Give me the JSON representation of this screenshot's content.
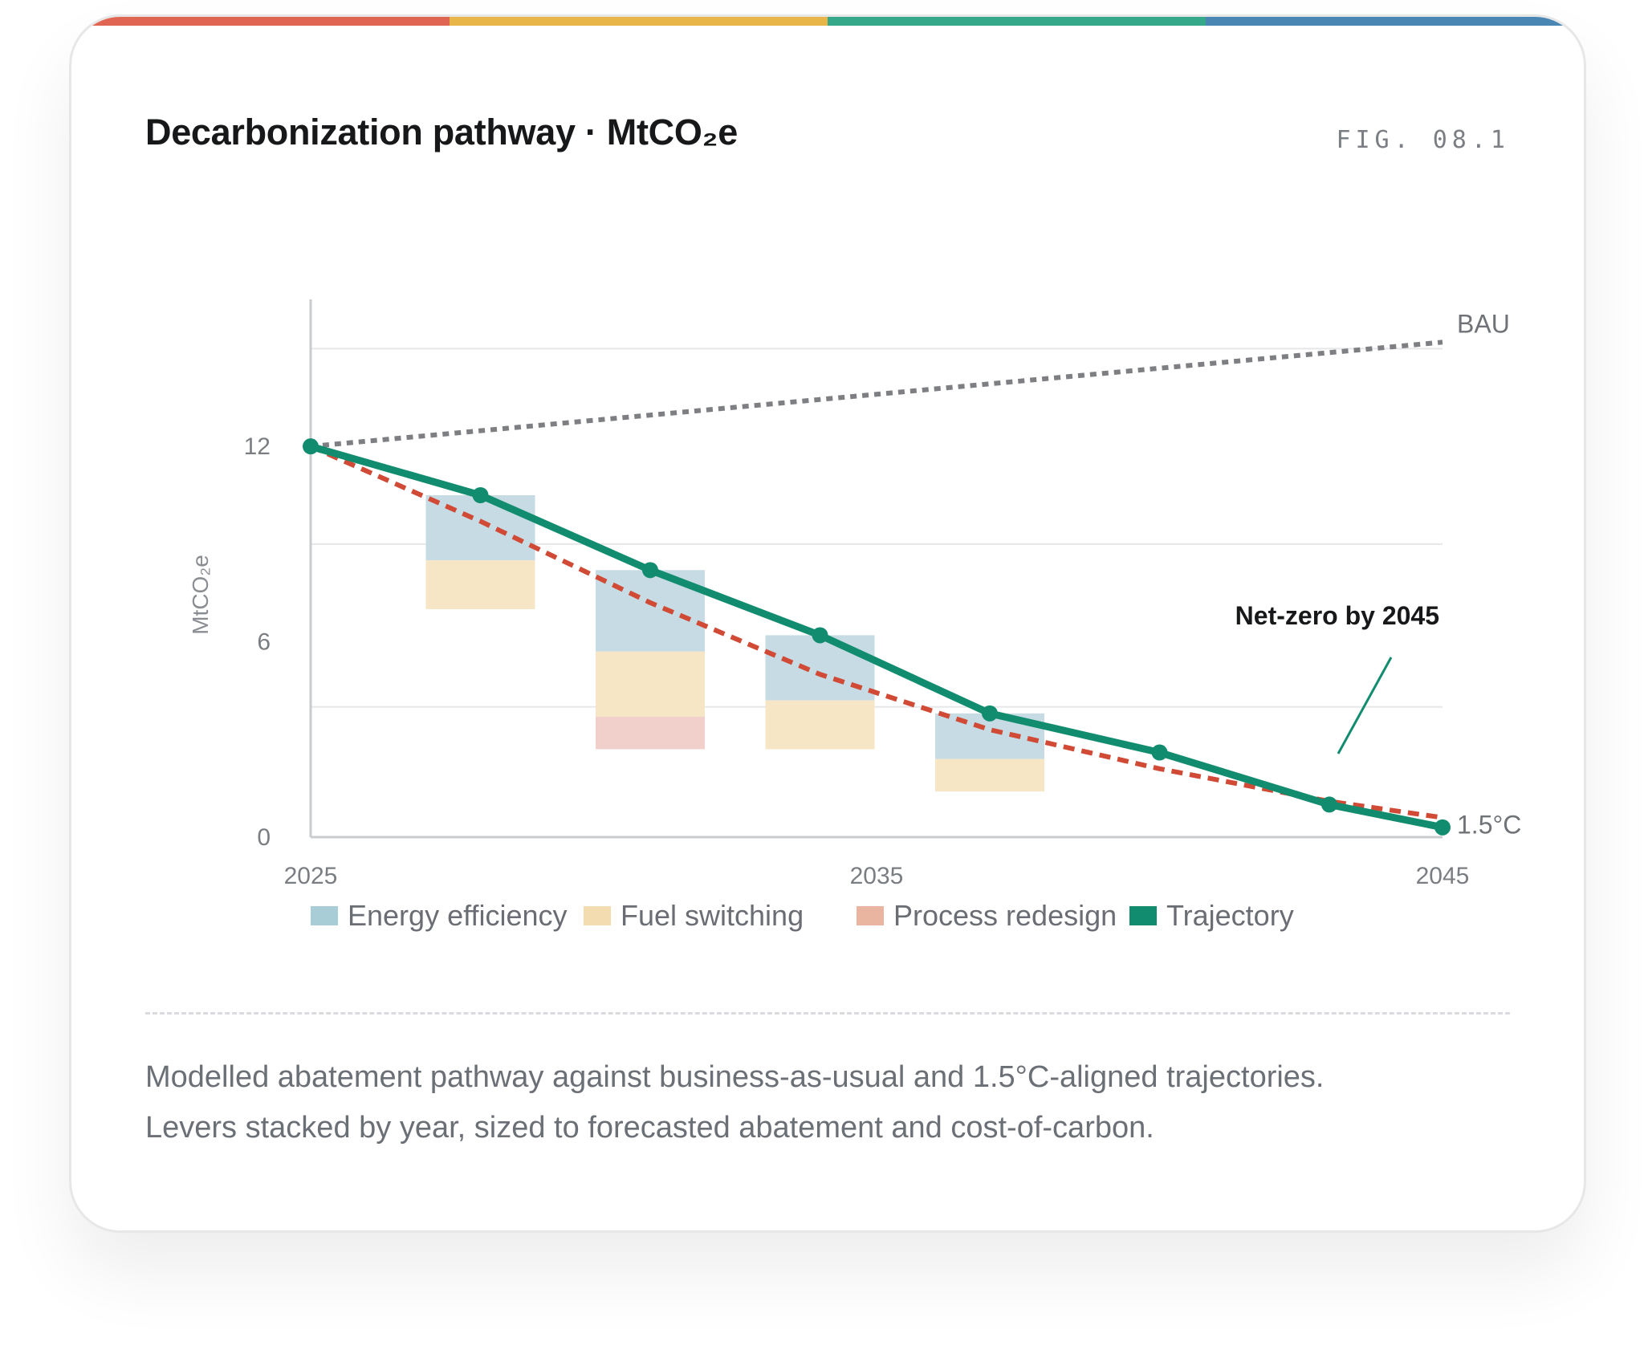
{
  "title": "Decarbonization pathway · MtCO₂e",
  "fig_label": "FIG. 08.1",
  "accent_colors": [
    "#e06552",
    "#e8b548",
    "#35a88a",
    "#4a86b4"
  ],
  "caption": {
    "line1": "Modelled abatement pathway against business-as-usual and 1.5°C-aligned trajectories.",
    "line2": "Levers stacked by year, sized to forecasted abatement and cost-of-carbon."
  },
  "chart_data": {
    "type": "line",
    "title": "Decarbonization pathway · MtCO₂e",
    "ylabel": "MtCO₂e",
    "xlabel": "",
    "xlim": [
      2025,
      2045
    ],
    "ylim": [
      0,
      17.5
    ],
    "x_ticks": [
      "2025",
      "2035",
      "2045"
    ],
    "y_ticks": [
      "0",
      "6",
      "12"
    ],
    "grid": true,
    "gridlines_y": [
      4,
      9,
      15
    ],
    "series": [
      {
        "name": "BAU",
        "style": "dotted",
        "color": "#7d7f83",
        "points": [
          [
            2025,
            12.0
          ],
          [
            2045,
            15.2
          ]
        ]
      },
      {
        "name": "1.5°C",
        "style": "dashed",
        "color": "#d04a36",
        "points": [
          [
            2025,
            12.0
          ],
          [
            2028,
            9.7
          ],
          [
            2031,
            7.2
          ],
          [
            2034,
            5.0
          ],
          [
            2037,
            3.3
          ],
          [
            2040,
            2.1
          ],
          [
            2043,
            1.1
          ],
          [
            2045,
            0.6
          ]
        ]
      },
      {
        "name": "Trajectory",
        "style": "solid",
        "color": "#128c6e",
        "points": [
          [
            2025,
            12.0
          ],
          [
            2028,
            10.5
          ],
          [
            2031,
            8.2
          ],
          [
            2034,
            6.2
          ],
          [
            2037,
            3.8
          ],
          [
            2040,
            2.6
          ],
          [
            2043,
            1.0
          ],
          [
            2045,
            0.3
          ]
        ]
      }
    ],
    "levers": {
      "colors": {
        "Energy efficiency": "#c6dbe4",
        "Fuel switching": "#f6e6c5",
        "Process redesign": "#f1d0cb"
      },
      "bars": [
        {
          "x": 2028,
          "segments": [
            {
              "lever": "Energy efficiency",
              "from": 10.5,
              "to": 8.5
            },
            {
              "lever": "Fuel switching",
              "from": 8.5,
              "to": 7.0
            }
          ]
        },
        {
          "x": 2031,
          "segments": [
            {
              "lever": "Energy efficiency",
              "from": 8.2,
              "to": 5.7
            },
            {
              "lever": "Fuel switching",
              "from": 5.7,
              "to": 3.7
            },
            {
              "lever": "Process redesign",
              "from": 3.7,
              "to": 2.7
            }
          ]
        },
        {
          "x": 2034,
          "segments": [
            {
              "lever": "Energy efficiency",
              "from": 6.2,
              "to": 4.2
            },
            {
              "lever": "Fuel switching",
              "from": 4.2,
              "to": 2.7
            }
          ]
        },
        {
          "x": 2037,
          "segments": [
            {
              "lever": "Energy efficiency",
              "from": 3.8,
              "to": 2.4
            },
            {
              "lever": "Fuel switching",
              "from": 2.4,
              "to": 1.4
            }
          ]
        }
      ]
    },
    "annotations": {
      "bau_label": "BAU",
      "target_label": "1.5°C",
      "callout": "Net-zero by 2045"
    },
    "legend": {
      "position": "bottom",
      "items": [
        {
          "label": "Energy efficiency",
          "color": "#a9cdd6"
        },
        {
          "label": "Fuel switching",
          "color": "#f3dcb0"
        },
        {
          "label": "Process redesign",
          "color": "#eab5a0"
        },
        {
          "label": "Trajectory",
          "color": "#128c6e"
        }
      ]
    }
  }
}
